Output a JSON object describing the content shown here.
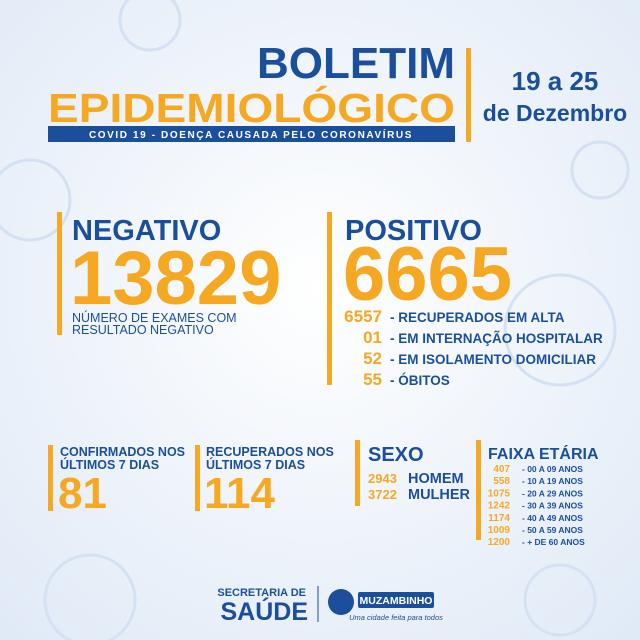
{
  "header": {
    "title_line_1": "BOLETIM",
    "title_line_2": "EPIDEMIOLÓGICO",
    "subtitle": "COVID 19 - DOENÇA CAUSADA PELO CORONAVÍRUS",
    "date_line_1": "19 a 25",
    "date_line_2": "de Dezembro"
  },
  "negativo": {
    "label": "NEGATIVO",
    "value": "13829",
    "note": [
      "NÚMERO DE EXAMES COM",
      "RESULTADO NEGATIVO"
    ]
  },
  "positivo": {
    "label": "POSITIVO",
    "value": "6665",
    "items": [
      {
        "value": "6557",
        "label": "- RECUPERADOS EM ALTA"
      },
      {
        "value": "01",
        "label": "- EM INTERNAÇÃO HOSPITALAR"
      },
      {
        "value": "52",
        "label": "- EM ISOLAMENTO DOMICILIAR"
      },
      {
        "value": "55",
        "label": "- ÓBITOS"
      }
    ]
  },
  "confirmados": {
    "label": [
      "CONFIRMADOS NOS",
      "ÚLTIMOS 7 DIAS"
    ],
    "value": "81"
  },
  "recuperados": {
    "label": [
      "RECUPERADOS NOS",
      "ÚLTIMOS 7 DIAS"
    ],
    "value": "114"
  },
  "sexo": {
    "label": "SEXO",
    "items": [
      {
        "value": "2943",
        "label": "HOMEM"
      },
      {
        "value": "3722",
        "label": "MULHER"
      }
    ]
  },
  "faixa_etaria": {
    "label": "FAIXA ETÁRIA",
    "items": [
      {
        "value": "407",
        "label": "- 00 A 09 ANOS"
      },
      {
        "value": "558",
        "label": "- 10 A 19 ANOS"
      },
      {
        "value": "1075",
        "label": "- 20 A 29 ANOS"
      },
      {
        "value": "1242",
        "label": "- 30 A 39 ANOS"
      },
      {
        "value": "1174",
        "label": "- 40 A 49 ANOS"
      },
      {
        "value": "1009",
        "label": "- 50 A 59 ANOS"
      },
      {
        "value": "1200",
        "label": "- + DE 60 ANOS"
      }
    ]
  },
  "footer": {
    "secretaria": "SECRETARIA DE",
    "saude": "SAÚDE",
    "city": "MUZAMBINHO",
    "slogan": "Uma cidade feita para todos"
  }
}
